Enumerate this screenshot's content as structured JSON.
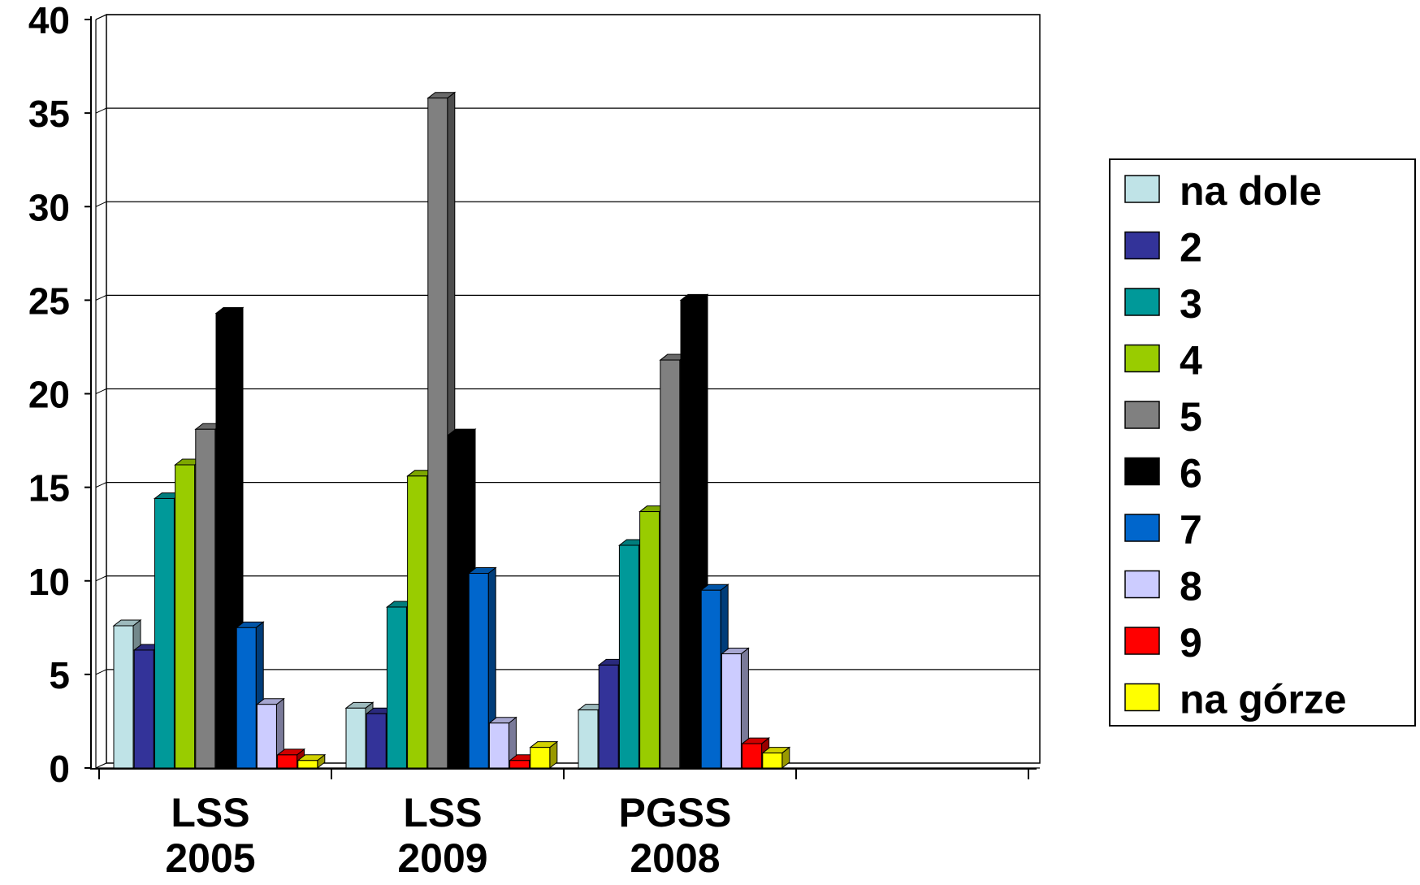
{
  "chart_data": {
    "type": "bar",
    "title": "",
    "xlabel": "",
    "ylabel": "",
    "ylim": [
      0,
      40
    ],
    "yticks": [
      "0",
      "5",
      "10",
      "15",
      "20",
      "25",
      "30",
      "35",
      "40"
    ],
    "grid": true,
    "legend_position": "right",
    "categories": [
      "LSS 2005",
      "LSS 2009",
      "PGSS 2008"
    ],
    "series": [
      {
        "name": "na dole",
        "color": "#BFE3E7",
        "values": [
          7.6,
          3.2,
          3.1
        ]
      },
      {
        "name": "2",
        "color": "#333399",
        "values": [
          6.3,
          2.9,
          5.5
        ]
      },
      {
        "name": "3",
        "color": "#009999",
        "values": [
          14.4,
          8.6,
          11.9
        ]
      },
      {
        "name": "4",
        "color": "#99CC00",
        "values": [
          16.2,
          15.6,
          13.7
        ]
      },
      {
        "name": "5",
        "color": "#808080",
        "values": [
          18.1,
          35.8,
          21.8
        ]
      },
      {
        "name": "6",
        "color": "#000000",
        "values": [
          24.3,
          17.8,
          25.0
        ]
      },
      {
        "name": "7",
        "color": "#0066CC",
        "values": [
          7.5,
          10.4,
          9.5
        ]
      },
      {
        "name": "8",
        "color": "#CCCCFF",
        "values": [
          3.4,
          2.4,
          6.1
        ]
      },
      {
        "name": "9",
        "color": "#FF0000",
        "values": [
          0.7,
          0.4,
          1.3
        ]
      },
      {
        "name": "na górze",
        "color": "#FFFF00",
        "values": [
          0.4,
          1.1,
          0.8
        ]
      }
    ]
  }
}
